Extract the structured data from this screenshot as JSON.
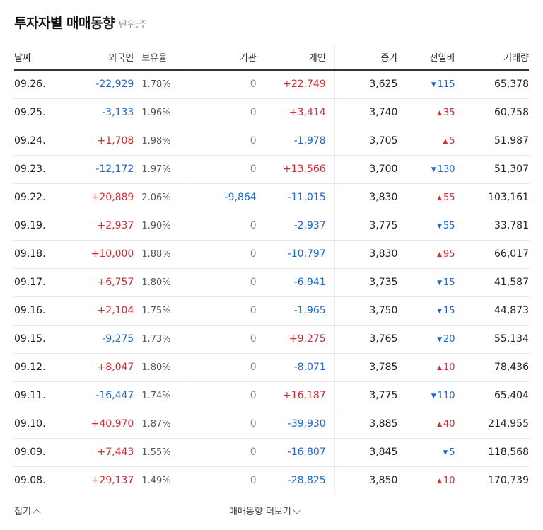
{
  "header": {
    "title": "투자자별 매매동향",
    "unit": "단위:주"
  },
  "columns": {
    "date": "날짜",
    "foreign": "외국인",
    "ratio": "보유율",
    "inst": "기관",
    "indiv": "개인",
    "close": "종가",
    "change": "전일비",
    "volume": "거래량"
  },
  "rows": [
    {
      "date": "09.26.",
      "foreign": "-22,929",
      "ratio": "1.78%",
      "inst": "0",
      "indiv": "+22,749",
      "close": "3,625",
      "change_dir": "down",
      "change": "115",
      "volume": "65,378"
    },
    {
      "date": "09.25.",
      "foreign": "-3,133",
      "ratio": "1.96%",
      "inst": "0",
      "indiv": "+3,414",
      "close": "3,740",
      "change_dir": "up",
      "change": "35",
      "volume": "60,758"
    },
    {
      "date": "09.24.",
      "foreign": "+1,708",
      "ratio": "1.98%",
      "inst": "0",
      "indiv": "-1,978",
      "close": "3,705",
      "change_dir": "up",
      "change": "5",
      "volume": "51,987"
    },
    {
      "date": "09.23.",
      "foreign": "-12,172",
      "ratio": "1.97%",
      "inst": "0",
      "indiv": "+13,566",
      "close": "3,700",
      "change_dir": "down",
      "change": "130",
      "volume": "51,307"
    },
    {
      "date": "09.22.",
      "foreign": "+20,889",
      "ratio": "2.06%",
      "inst": "-9,864",
      "indiv": "-11,015",
      "close": "3,830",
      "change_dir": "up",
      "change": "55",
      "volume": "103,161"
    },
    {
      "date": "09.19.",
      "foreign": "+2,937",
      "ratio": "1.90%",
      "inst": "0",
      "indiv": "-2,937",
      "close": "3,775",
      "change_dir": "down",
      "change": "55",
      "volume": "33,781"
    },
    {
      "date": "09.18.",
      "foreign": "+10,000",
      "ratio": "1.88%",
      "inst": "0",
      "indiv": "-10,797",
      "close": "3,830",
      "change_dir": "up",
      "change": "95",
      "volume": "66,017"
    },
    {
      "date": "09.17.",
      "foreign": "+6,757",
      "ratio": "1.80%",
      "inst": "0",
      "indiv": "-6,941",
      "close": "3,735",
      "change_dir": "down",
      "change": "15",
      "volume": "41,587"
    },
    {
      "date": "09.16.",
      "foreign": "+2,104",
      "ratio": "1.75%",
      "inst": "0",
      "indiv": "-1,965",
      "close": "3,750",
      "change_dir": "down",
      "change": "15",
      "volume": "44,873"
    },
    {
      "date": "09.15.",
      "foreign": "-9,275",
      "ratio": "1.73%",
      "inst": "0",
      "indiv": "+9,275",
      "close": "3,765",
      "change_dir": "down",
      "change": "20",
      "volume": "55,134"
    },
    {
      "date": "09.12.",
      "foreign": "+8,047",
      "ratio": "1.80%",
      "inst": "0",
      "indiv": "-8,071",
      "close": "3,785",
      "change_dir": "up",
      "change": "10",
      "volume": "78,436"
    },
    {
      "date": "09.11.",
      "foreign": "-16,447",
      "ratio": "1.74%",
      "inst": "0",
      "indiv": "+16,187",
      "close": "3,775",
      "change_dir": "down",
      "change": "110",
      "volume": "65,404"
    },
    {
      "date": "09.10.",
      "foreign": "+40,970",
      "ratio": "1.87%",
      "inst": "0",
      "indiv": "-39,930",
      "close": "3,885",
      "change_dir": "up",
      "change": "40",
      "volume": "214,955"
    },
    {
      "date": "09.09.",
      "foreign": "+7,443",
      "ratio": "1.55%",
      "inst": "0",
      "indiv": "-16,807",
      "close": "3,845",
      "change_dir": "down",
      "change": "5",
      "volume": "118,568"
    },
    {
      "date": "09.08.",
      "foreign": "+29,137",
      "ratio": "1.49%",
      "inst": "0",
      "indiv": "-28,825",
      "close": "3,850",
      "change_dir": "up",
      "change": "10",
      "volume": "170,739"
    }
  ],
  "footer": {
    "fold_label": "접기",
    "more_label": "매매동향 더보기"
  },
  "colors": {
    "up": "#e0262c",
    "down": "#1769e0",
    "zero": "#888888"
  }
}
